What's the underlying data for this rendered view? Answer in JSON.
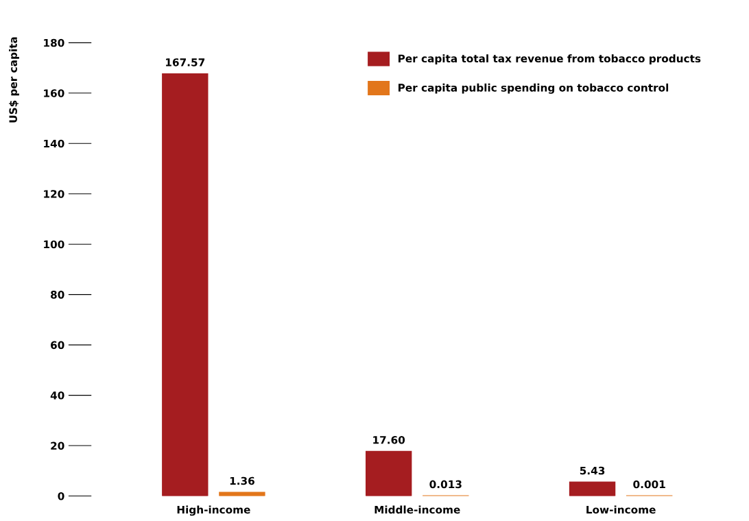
{
  "chart_data": {
    "type": "bar",
    "ylabel": "US$ per capita",
    "categories": [
      "High-income",
      "Middle-income",
      "Low-income"
    ],
    "series": [
      {
        "name": "Per capita total tax revenue from tobacco products",
        "color": "#a51d20",
        "values": [
          167.57,
          17.6,
          5.43
        ],
        "value_labels": [
          "167.57",
          "17.60",
          "5.43"
        ]
      },
      {
        "name": "Per capita public spending on tobacco control",
        "color": "#e2761b",
        "values": [
          1.36,
          0.013,
          0.001
        ],
        "value_labels": [
          "1.36",
          "0.013",
          "0.001"
        ]
      }
    ],
    "ylim": [
      0,
      180
    ],
    "yticks": [
      0,
      20,
      40,
      60,
      80,
      100,
      120,
      140,
      160,
      180
    ],
    "grid": false,
    "legend": "top right"
  }
}
